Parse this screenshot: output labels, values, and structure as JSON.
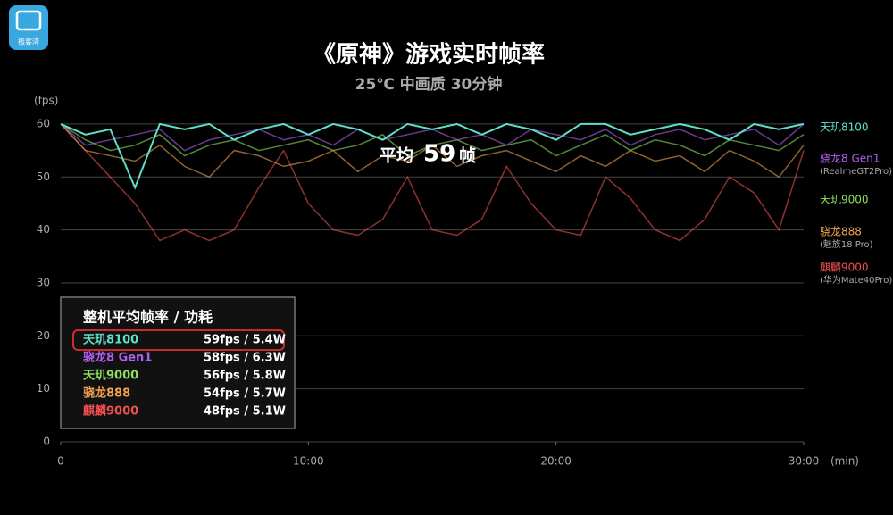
{
  "logo": "极客湾",
  "chart_data": {
    "type": "line",
    "title": "《原神》游戏实时帧率",
    "subtitle": "25℃ 中画质 30分钟",
    "y_label": "(fps)",
    "x_label": "(min)",
    "annotation": {
      "prefix": "平均",
      "value": "59",
      "suffix": "帧"
    },
    "table_title": "整机平均帧率 / 功耗",
    "x": [
      0,
      1,
      2,
      3,
      4,
      5,
      6,
      7,
      8,
      9,
      10,
      11,
      12,
      13,
      14,
      15,
      16,
      17,
      18,
      19,
      20,
      21,
      22,
      23,
      24,
      25,
      26,
      27,
      28,
      29,
      30
    ],
    "xlim": [
      0,
      30
    ],
    "xticks": [
      0,
      {
        "value": 10,
        "label": "10:00"
      },
      {
        "value": 20,
        "label": "20:00"
      },
      {
        "value": 30,
        "label": "30:00"
      }
    ],
    "ylim": [
      0,
      61
    ],
    "yticks": [
      0,
      10,
      20,
      30,
      40,
      50,
      60
    ],
    "grid": true,
    "series": [
      {
        "name": "天玑8100",
        "color": "#5ee0c8",
        "summary": "59fps / 5.4W",
        "values": [
          60,
          58,
          59,
          48,
          60,
          59,
          60,
          57,
          59,
          60,
          58,
          60,
          59,
          57,
          60,
          59,
          60,
          58,
          60,
          59,
          57,
          60,
          60,
          58,
          59,
          60,
          59,
          57,
          60,
          59,
          60
        ]
      },
      {
        "name": "骁龙8 Gen1",
        "device": "(RealmeGT2Pro)",
        "color": "#b060f0",
        "summary": "58fps / 6.3W",
        "values": [
          60,
          56,
          57,
          58,
          59,
          55,
          57,
          58,
          59,
          57,
          58,
          56,
          59,
          57,
          58,
          59,
          57,
          58,
          56,
          59,
          58,
          57,
          59,
          56,
          58,
          59,
          57,
          58,
          59,
          56,
          60
        ]
      },
      {
        "name": "天玑9000",
        "color": "#8fe060",
        "summary": "56fps / 5.8W",
        "values": [
          60,
          57,
          55,
          56,
          58,
          54,
          56,
          57,
          55,
          56,
          57,
          55,
          56,
          58,
          54,
          56,
          57,
          55,
          56,
          57,
          54,
          56,
          58,
          55,
          57,
          56,
          54,
          57,
          56,
          55,
          58
        ]
      },
      {
        "name": "骁龙888",
        "device": "(魅族18 Pro)",
        "color": "#f0a050",
        "summary": "54fps / 5.7W",
        "values": [
          60,
          55,
          54,
          53,
          56,
          52,
          50,
          55,
          54,
          52,
          53,
          55,
          51,
          54,
          53,
          56,
          52,
          54,
          55,
          53,
          51,
          54,
          52,
          55,
          53,
          54,
          51,
          55,
          53,
          50,
          56
        ]
      },
      {
        "name": "麒麟9000",
        "device": "(华为Mate40Pro)",
        "color": "#f05050",
        "summary": "48fps / 5.1W",
        "values": [
          60,
          55,
          50,
          45,
          38,
          40,
          38,
          40,
          48,
          55,
          45,
          40,
          39,
          42,
          50,
          40,
          39,
          42,
          52,
          45,
          40,
          39,
          50,
          46,
          40,
          38,
          42,
          50,
          47,
          40,
          55
        ]
      }
    ]
  }
}
